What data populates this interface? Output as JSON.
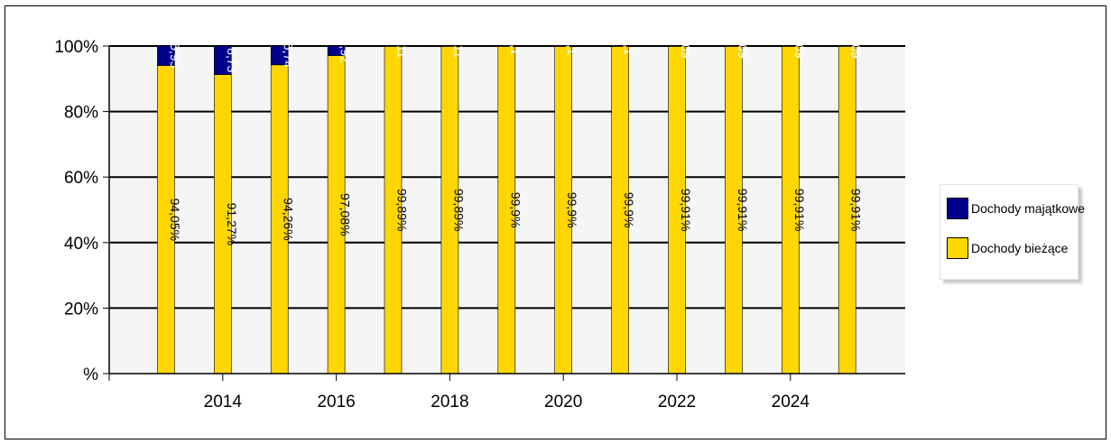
{
  "chart_data": {
    "type": "bar",
    "stacked": "percent",
    "x": [
      2013,
      2014,
      2015,
      2016,
      2017,
      2018,
      2019,
      2020,
      2021,
      2022,
      2023,
      2024,
      2025
    ],
    "x_ticks": [
      2014,
      2016,
      2018,
      2020,
      2022,
      2024
    ],
    "y_ticks": [
      "%",
      "20%",
      "40%",
      "60%",
      "80%",
      "100%"
    ],
    "ylim": [
      0,
      100
    ],
    "grid": true,
    "legend_position": "right",
    "series": [
      {
        "name": "Dochody bieżące",
        "color": "#ffd700",
        "label_color": "#000000",
        "values": [
          94.05,
          91.27,
          94.26,
          97.08,
          99.89,
          99.89,
          99.9,
          99.9,
          99.9,
          99.91,
          99.91,
          99.91,
          99.91
        ],
        "labels": [
          "94,05%",
          "91,27%",
          "94,26%",
          "97,08%",
          "99,89%",
          "99,89%",
          "99,9%",
          "99,9%",
          "99,9%",
          "99,91%",
          "99,91%",
          "99,91%",
          "99,91%"
        ]
      },
      {
        "name": "Dochody majątkowe",
        "color": "#00008b",
        "label_color": "#ffffff",
        "values": [
          5.95,
          8.73,
          5.74,
          2.92,
          0.11,
          0.11,
          0.1,
          0.1,
          0.1,
          0.09,
          0.09,
          0.09,
          0.09
        ],
        "labels": [
          "5,95",
          "8,73",
          "5,74",
          "2,92",
          "0,11",
          "0,11",
          "0,1",
          "0,1",
          "0,1",
          "0,09",
          "0,09",
          "0,09",
          "0,09"
        ]
      }
    ]
  },
  "legend": {
    "items": [
      {
        "label": "Dochody majątkowe",
        "color": "#00008b"
      },
      {
        "label": "Dochody bieżące",
        "color": "#ffd700"
      }
    ]
  }
}
